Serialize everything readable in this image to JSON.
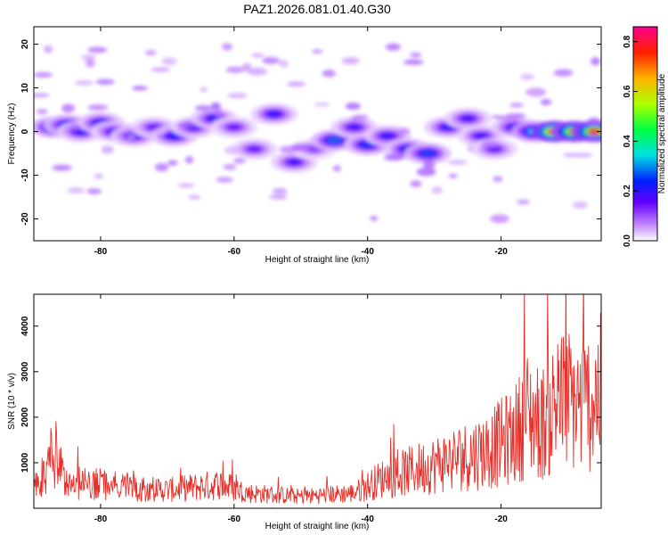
{
  "chart_data": [
    {
      "type": "heatmap",
      "title": "PAZ1.2026.081.01.40.G30",
      "xlabel": "Height of straight line (km)",
      "ylabel": "Frequency (Hz)",
      "xlim": [
        -90,
        -5
      ],
      "ylim": [
        -25,
        24
      ],
      "xticks": [
        -80,
        -60,
        -40,
        -20
      ],
      "yticks": [
        20,
        10,
        0,
        -10,
        -20
      ],
      "colorbar": {
        "label": "Normalized spectral amplitude",
        "range": [
          0,
          0.86
        ],
        "ticks": [
          0.0,
          0.2,
          0.4,
          0.6,
          0.8
        ]
      },
      "blobs": [
        {
          "x": -87,
          "y": 1,
          "a": 0.3
        },
        {
          "x": -85,
          "y": 1.5,
          "a": 0.25
        },
        {
          "x": -83,
          "y": 0,
          "a": 0.2
        },
        {
          "x": -80,
          "y": 2,
          "a": 0.22
        },
        {
          "x": -78,
          "y": 0,
          "a": 0.18
        },
        {
          "x": -75,
          "y": -1,
          "a": 0.2
        },
        {
          "x": -72,
          "y": 1,
          "a": 0.15
        },
        {
          "x": -69,
          "y": -1,
          "a": 0.22
        },
        {
          "x": -66,
          "y": 1,
          "a": 0.18
        },
        {
          "x": -63,
          "y": 3,
          "a": 0.2
        },
        {
          "x": -60,
          "y": 1,
          "a": 0.15
        },
        {
          "x": -57,
          "y": -4,
          "a": 0.15
        },
        {
          "x": -54,
          "y": 4,
          "a": 0.2
        },
        {
          "x": -51,
          "y": -7,
          "a": 0.18
        },
        {
          "x": -48,
          "y": -4,
          "a": 0.12
        },
        {
          "x": -45,
          "y": -2,
          "a": 0.28
        },
        {
          "x": -42,
          "y": 1,
          "a": 0.18
        },
        {
          "x": -40,
          "y": -3,
          "a": 0.25
        },
        {
          "x": -37,
          "y": -1,
          "a": 0.2
        },
        {
          "x": -34,
          "y": -4,
          "a": 0.22
        },
        {
          "x": -31,
          "y": -5,
          "a": 0.26
        },
        {
          "x": -28,
          "y": 1,
          "a": 0.2
        },
        {
          "x": -25,
          "y": 3,
          "a": 0.18
        },
        {
          "x": -23,
          "y": -1,
          "a": 0.18
        },
        {
          "x": -21,
          "y": -4,
          "a": 0.15
        },
        {
          "x": -18,
          "y": 1,
          "a": 0.2
        },
        {
          "x": -15,
          "y": 0,
          "a": 0.35
        },
        {
          "x": -12,
          "y": 0,
          "a": 0.8
        },
        {
          "x": -9,
          "y": 0,
          "a": 0.7
        },
        {
          "x": -6,
          "y": 0,
          "a": 0.75
        }
      ]
    },
    {
      "type": "line",
      "xlabel": "Height of straight line (km)",
      "ylabel": "SNR (10 * v/v)",
      "xlim": [
        -90,
        -5
      ],
      "ylim": [
        0,
        4700
      ],
      "xticks": [
        -80,
        -60,
        -40,
        -20
      ],
      "yticks": [
        1000,
        2000,
        3000,
        4000
      ],
      "color": "#e8302a",
      "envelope": {
        "x": [
          -90,
          -88,
          -87,
          -85,
          -80,
          -70,
          -62,
          -58,
          -50,
          -42,
          -38,
          -34,
          -30,
          -26,
          -22,
          -18,
          -16,
          -14,
          -12,
          -10,
          -8,
          -5
        ],
        "y": [
          700,
          900,
          1800,
          700,
          650,
          500,
          650,
          420,
          320,
          420,
          800,
          1000,
          1200,
          1400,
          1600,
          2000,
          2600,
          2300,
          2800,
          3000,
          2800,
          3200
        ]
      }
    }
  ]
}
